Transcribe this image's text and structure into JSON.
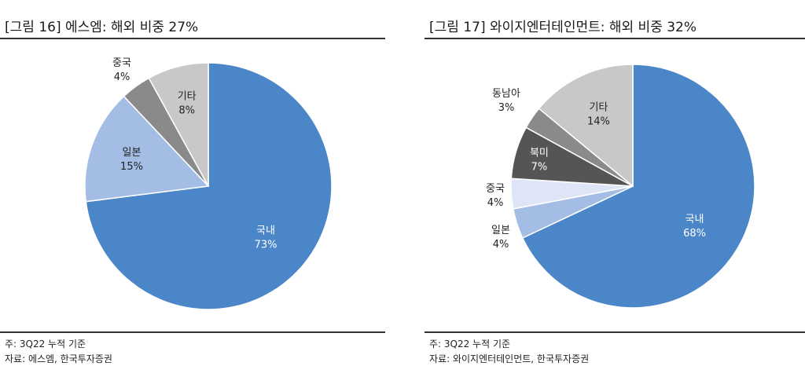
{
  "left": {
    "title": "[그림 16] 에스엠: 해외 비중 27%",
    "note": "주: 3Q22 누적 기준",
    "source": "자료: 에스엠, 한국투자증권"
  },
  "right": {
    "title": "[그림 17] 와이지엔터테인먼트: 해외 비중 32%",
    "note": "주: 3Q22 누적 기준",
    "source": "자료: 와이지엔터테인먼트, 한국투자증권"
  },
  "chart_data": [
    {
      "type": "pie",
      "title": "[그림 16] 에스엠: 해외 비중 27%",
      "slices": [
        {
          "label": "국내",
          "value": 73,
          "value_label": "73%",
          "color": "#4a86c8",
          "label_color": "#ffffff"
        },
        {
          "label": "일본",
          "value": 15,
          "value_label": "15%",
          "color": "#a4bde4",
          "label_color": "#222222"
        },
        {
          "label": "중국",
          "value": 4,
          "value_label": "4%",
          "color": "#8a8a8a",
          "label_color": "#222222"
        },
        {
          "label": "기타",
          "value": 8,
          "value_label": "8%",
          "color": "#c8c8c8",
          "label_color": "#222222"
        }
      ]
    },
    {
      "type": "pie",
      "title": "[그림 17] 와이지엔터테인먼트: 해외 비중 32%",
      "slices": [
        {
          "label": "국내",
          "value": 68,
          "value_label": "68%",
          "color": "#4a86c8",
          "label_color": "#ffffff"
        },
        {
          "label": "일본",
          "value": 4,
          "value_label": "4%",
          "color": "#a4bde4",
          "label_color": "#222222"
        },
        {
          "label": "중국",
          "value": 4,
          "value_label": "4%",
          "color": "#dde5f6",
          "label_color": "#222222"
        },
        {
          "label": "북미",
          "value": 7,
          "value_label": "7%",
          "color": "#555555",
          "label_color": "#ffffff"
        },
        {
          "label": "동남아",
          "value": 3,
          "value_label": "3%",
          "color": "#8a8a8a",
          "label_color": "#222222"
        },
        {
          "label": "기타",
          "value": 14,
          "value_label": "14%",
          "color": "#c8c8c8",
          "label_color": "#222222"
        }
      ]
    }
  ]
}
